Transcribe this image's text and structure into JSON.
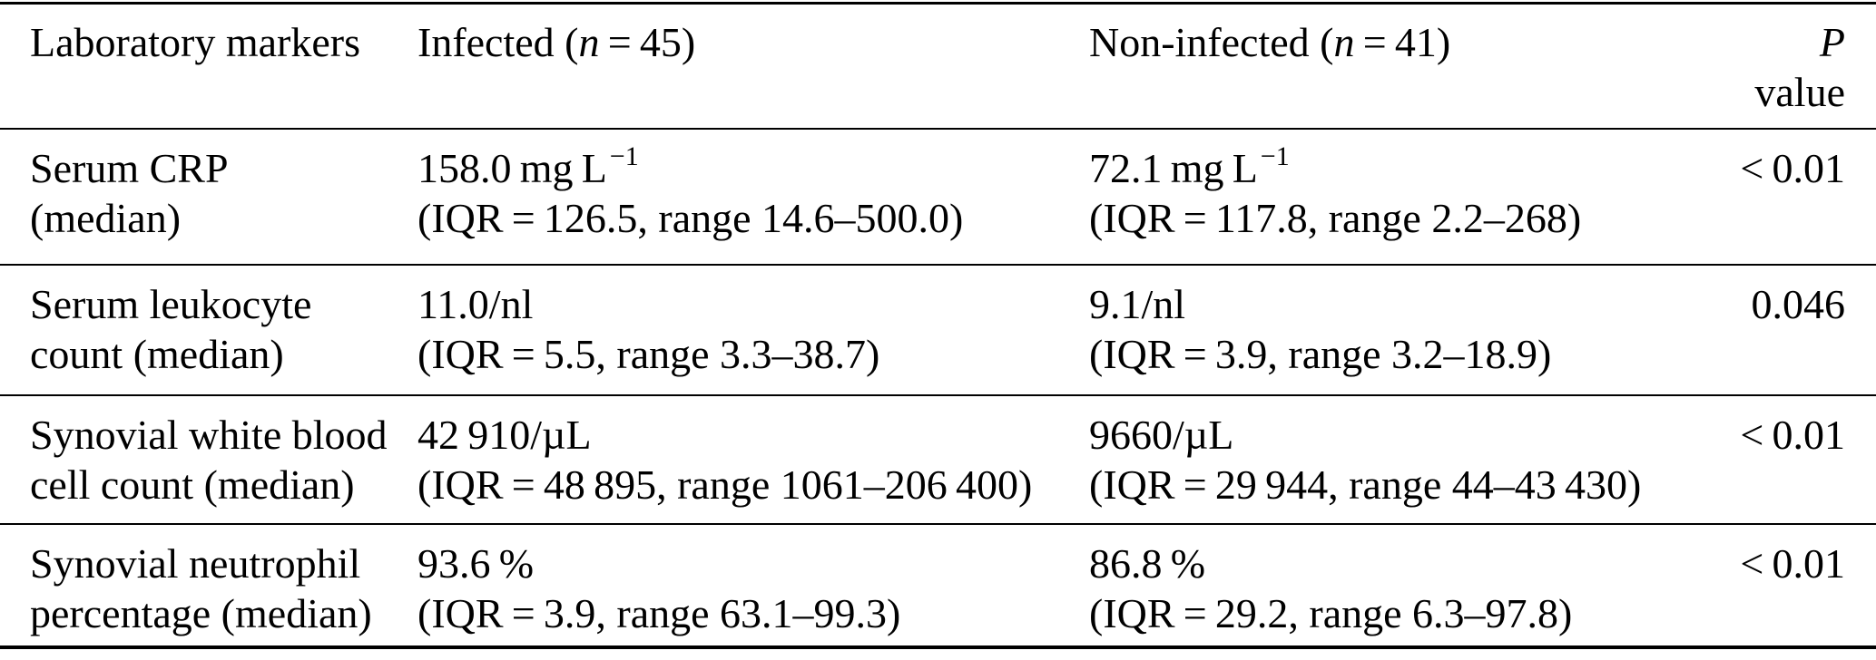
{
  "colors": {
    "text": "#000000",
    "rule": "#000000",
    "background": "#ffffff"
  },
  "header": {
    "col1": "Laboratory markers",
    "infected": {
      "pre": "Infected (",
      "var": "n",
      "post": " = 45)"
    },
    "noninfected": {
      "pre": "Non-infected (",
      "var": "n",
      "post": " = 41)"
    },
    "p": {
      "line1": "P",
      "line2": "value"
    }
  },
  "rows": [
    {
      "marker": [
        "Serum CRP",
        "(median)"
      ],
      "infected": {
        "main": "158.0 mg L",
        "sup": "−1",
        "detail": "(IQR = 126.5, range 14.6–500.0)"
      },
      "noninfected": {
        "main": "72.1 mg L",
        "sup": "−1",
        "detail": "(IQR = 117.8, range 2.2–268)"
      },
      "p": "< 0.01"
    },
    {
      "marker": [
        "Serum leukocyte",
        "count (median)"
      ],
      "infected": {
        "main": "11.0/nl",
        "detail": "(IQR = 5.5, range 3.3–38.7)"
      },
      "noninfected": {
        "main": "9.1/nl",
        "detail": "(IQR = 3.9, range 3.2–18.9)"
      },
      "p": "0.046"
    },
    {
      "marker": [
        "Synovial white blood",
        "cell count (median)"
      ],
      "infected": {
        "main": "42 910/µL",
        "detail": "(IQR = 48 895, range 1061–206 400)"
      },
      "noninfected": {
        "main": "9660/µL",
        "detail": "(IQR = 29 944, range 44–43 430)"
      },
      "p": "< 0.01"
    },
    {
      "marker": [
        "Synovial neutrophil",
        "percentage (median)"
      ],
      "infected": {
        "main": "93.6 %",
        "detail": "(IQR = 3.9, range 63.1–99.3)"
      },
      "noninfected": {
        "main": "86.8 %",
        "detail": "(IQR = 29.2, range 6.3–97.8)"
      },
      "p": "< 0.01"
    }
  ]
}
